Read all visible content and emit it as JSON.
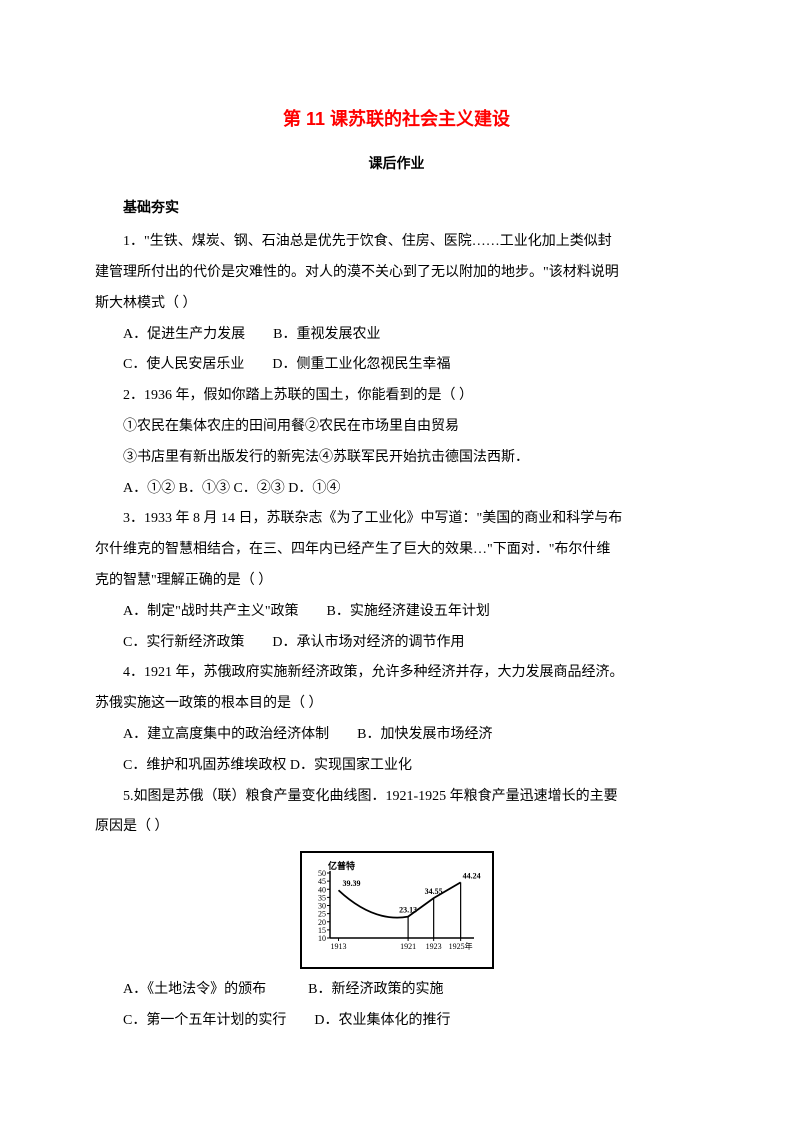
{
  "title": "第 11 课苏联的社会主义建设",
  "subtitle": "课后作业",
  "sectionHeader": "基础夯实",
  "q1": {
    "l1": "1．\"生铁、煤炭、钢、石油总是优先于饮食、住房、医院……工业化加上类似封",
    "l2": "建管理所付出的代价是灾难性的。对人的漠不关心到了无以附加的地步。\"该材料说明",
    "l3": "斯大林模式（ ）",
    "optA": "A．促进生产力发展　　B．重视发展农业",
    "optC": "C．使人民安居乐业　　D．侧重工业化忽视民生幸福"
  },
  "q2": {
    "l1": "2．1936 年，假如你踏上苏联的国土，你能看到的是（ ）",
    "l2": "①农民在集体农庄的田间用餐②农民在市场里自由贸易",
    "l3": "③书店里有新出版发行的新宪法④苏联军民开始抗击德国法西斯．",
    "opts": "A．①②  B．①③  C．②③  D．①④"
  },
  "q3": {
    "l1": "3．1933 年 8 月 14 日，苏联杂志《为了工业化》中写道：\"美国的商业和科学与布",
    "l2": "尔什维克的智慧相结合，在三、四年内已经产生了巨大的效果…\"下面对．\"布尔什维",
    "l3": "克的智慧\"理解正确的是（ ）",
    "optA": "A．制定\"战时共产主义\"政策　　B．实施经济建设五年计划",
    "optC": "C．实行新经济政策　　D．承认市场对经济的调节作用"
  },
  "q4": {
    "l1": "4．1921 年，苏俄政府实施新经济政策，允许多种经济并存，大力发展商品经济。",
    "l2": "苏俄实施这一政策的根本目的是（ ）",
    "optA": "A．建立高度集中的政治经济体制　　B．加快发展市场经济",
    "optC": "C．维护和巩固苏维埃政权  D．实现国家工业化"
  },
  "q5": {
    "l1": "5.如图是苏俄（联）粮食产量变化曲线图．1921-1925 年粮食产量迅速增长的主要",
    "l2": "原因是（ ）",
    "optA": "A．《土地法令》的颁布　　　B．新经济政策的实施",
    "optC": "C．第一个五年计划的实行　　D．农业集体化的推行"
  },
  "chart": {
    "yLabel": "亿普特",
    "yTicks": [
      50,
      45,
      40,
      35,
      30,
      25,
      20,
      15,
      10
    ],
    "xTicks": [
      "1913",
      "1921",
      "1923",
      "1925年"
    ],
    "points": [
      {
        "x": 0,
        "yVal": 39.39,
        "label": "39.39",
        "labelPos": "left"
      },
      {
        "x": 1,
        "yVal": 23.13,
        "label": "23.13",
        "labelPos": "top"
      },
      {
        "x": 2,
        "yVal": 34.55,
        "label": "34.55",
        "labelPos": "top"
      },
      {
        "x": 3,
        "yVal": 44.24,
        "label": "44.24",
        "labelPos": "top"
      }
    ],
    "yMin": 10,
    "yMax": 50,
    "chartWidth": 170,
    "chartHeight": 95,
    "marginLeft": 22,
    "marginTop": 16,
    "marginBottom": 14,
    "marginRight": 6,
    "strokeColor": "#000000",
    "fontSize": 9
  }
}
